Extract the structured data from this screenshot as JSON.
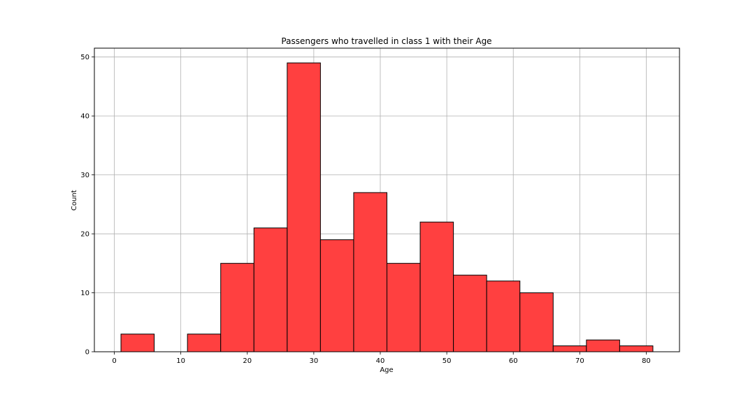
{
  "chart_data": {
    "type": "bar",
    "title": "Passengers who travelled in class 1 with their Age",
    "xlabel": "Age",
    "ylabel": "Count",
    "bin_edges": [
      1,
      6,
      11,
      16,
      21,
      26,
      31,
      36,
      41,
      46,
      51,
      56,
      61,
      66,
      71,
      76,
      81
    ],
    "values": [
      3,
      0,
      3,
      15,
      21,
      49,
      19,
      27,
      15,
      22,
      13,
      12,
      10,
      1,
      2,
      1
    ],
    "xlim": [
      -3,
      85
    ],
    "ylim": [
      0,
      51.5
    ],
    "xticks": [
      0,
      10,
      20,
      30,
      40,
      50,
      60,
      70,
      80
    ],
    "yticks": [
      0,
      10,
      20,
      30,
      40,
      50
    ],
    "grid": true,
    "bar_color": "#ff4040",
    "edge_color": "#000000"
  }
}
